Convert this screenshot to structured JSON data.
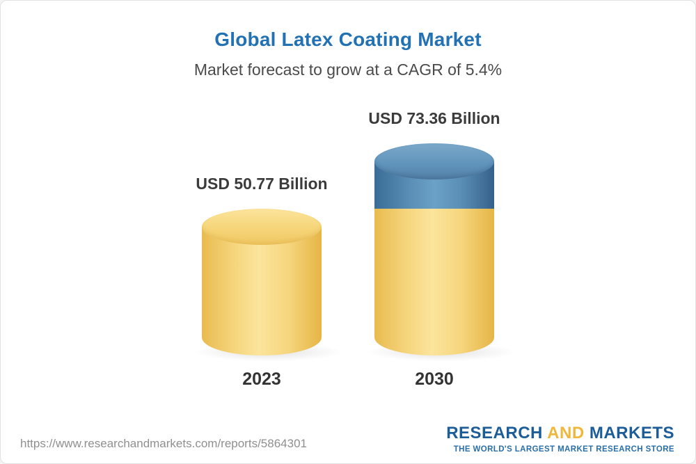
{
  "chart_data": {
    "type": "bar",
    "subtype": "3d-cylinder-stacked",
    "title": "Global Latex Coating Market",
    "subtitle": "Market forecast to grow at a CAGR of 5.4%",
    "categories": [
      "2023",
      "2030"
    ],
    "values": [
      50.77,
      73.36
    ],
    "value_labels": [
      "USD 50.77 Billion",
      "USD 73.36 Billion"
    ],
    "unit": "USD Billion",
    "cagr_percent": 5.4,
    "legend": "none",
    "grid": false,
    "colors": {
      "base_segment": "#f5d06c",
      "growth_segment": "#4e81ab",
      "title": "#2271b3"
    }
  },
  "footer": {
    "url": "https://www.researchandmarkets.com/reports/5864301",
    "logo": {
      "word1": "RESEARCH",
      "word2": "AND",
      "word3": "MARKETS",
      "tagline": "THE WORLD'S LARGEST MARKET RESEARCH STORE"
    }
  }
}
